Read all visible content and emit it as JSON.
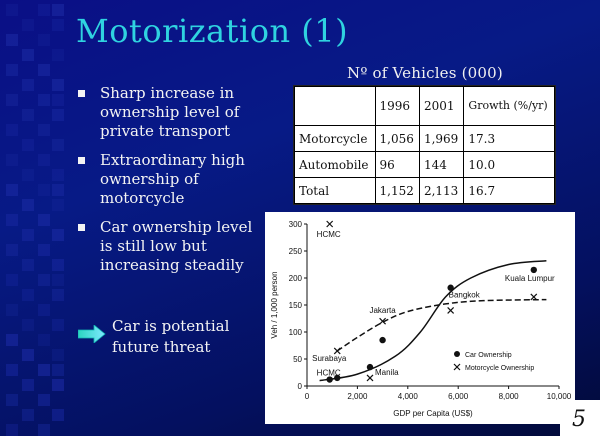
{
  "title": "Motorization (1)",
  "bullets": [
    "Sharp increase in ownership level of private transport",
    "Extraordinary high ownership of motorcycle",
    "Car ownership level is still low but increasing steadily"
  ],
  "threat_text": "Car is potential future threat",
  "table": {
    "caption": "Nº of Vehicles (000)",
    "headers": [
      "",
      "1996",
      "2001",
      "Growth (%/yr)"
    ],
    "rows": [
      [
        "Motorcycle",
        "1,056",
        "1,969",
        "17.3"
      ],
      [
        "Automobile",
        "96",
        "144",
        "10.0"
      ],
      [
        "Total",
        "1,152",
        "2,113",
        "16.7"
      ]
    ]
  },
  "chart_data": {
    "type": "scatter",
    "xlabel": "GDP per Capita (US$)",
    "ylabel": "Veh / 1,000 person",
    "xlim": [
      0,
      10000
    ],
    "ylim": [
      0,
      300
    ],
    "xticks": [
      "0",
      "2,000",
      "4,000",
      "6,000",
      "8,000",
      "10,000"
    ],
    "yticks": [
      "0",
      "50",
      "100",
      "150",
      "200",
      "250",
      "300"
    ],
    "legend": [
      "Car Ownership",
      "Motorcycle Ownership"
    ],
    "series": [
      {
        "name": "Car Ownership",
        "marker": "dot",
        "points": [
          {
            "x": 900,
            "y": 12
          },
          {
            "x": 1200,
            "y": 15
          },
          {
            "x": 2500,
            "y": 35
          },
          {
            "x": 3000,
            "y": 85
          },
          {
            "x": 5700,
            "y": 182
          },
          {
            "x": 9000,
            "y": 215
          }
        ],
        "trend": [
          {
            "x": 500,
            "y": 10
          },
          {
            "x": 2000,
            "y": 22
          },
          {
            "x": 3500,
            "y": 55
          },
          {
            "x": 4500,
            "y": 100
          },
          {
            "x": 5500,
            "y": 165
          },
          {
            "x": 6500,
            "y": 200
          },
          {
            "x": 8000,
            "y": 225
          },
          {
            "x": 9500,
            "y": 232
          }
        ]
      },
      {
        "name": "Motorcycle Ownership",
        "marker": "x",
        "points": [
          {
            "x": 900,
            "y": 300
          },
          {
            "x": 1200,
            "y": 65
          },
          {
            "x": 2500,
            "y": 15
          },
          {
            "x": 3000,
            "y": 120
          },
          {
            "x": 5700,
            "y": 140
          },
          {
            "x": 9000,
            "y": 165
          }
        ],
        "trend": [
          {
            "x": 1200,
            "y": 65
          },
          {
            "x": 2000,
            "y": 90
          },
          {
            "x": 3000,
            "y": 118
          },
          {
            "x": 4000,
            "y": 138
          },
          {
            "x": 5500,
            "y": 152
          },
          {
            "x": 7000,
            "y": 158
          },
          {
            "x": 9500,
            "y": 160
          }
        ]
      }
    ],
    "annotations": [
      {
        "text": "HCMC",
        "x": 900,
        "y": 300
      },
      {
        "text": "Surabaya",
        "x": 1200,
        "y": 65
      },
      {
        "text": "HCMC",
        "x": 900,
        "y": 12
      },
      {
        "text": "Manila",
        "x": 2500,
        "y": 35
      },
      {
        "text": "Jakarta",
        "x": 3000,
        "y": 120
      },
      {
        "text": "Bangkok",
        "x": 5700,
        "y": 182
      },
      {
        "text": "Kuala Lumpur",
        "x": 9000,
        "y": 215
      }
    ]
  },
  "page_number": "5"
}
